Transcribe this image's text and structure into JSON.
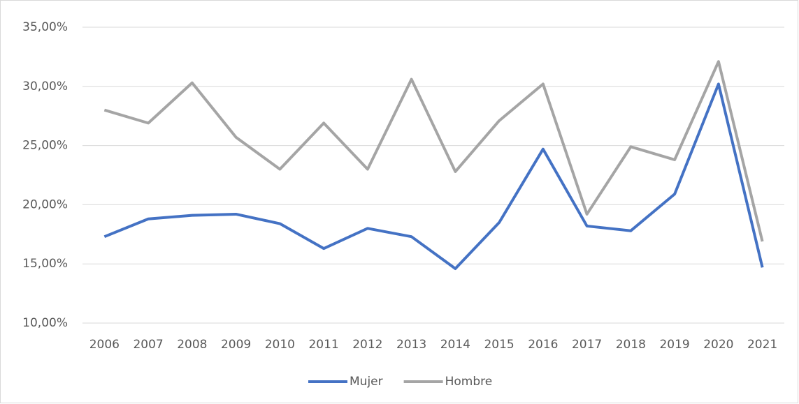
{
  "chart_data": {
    "type": "line",
    "categories": [
      "2006",
      "2007",
      "2008",
      "2009",
      "2010",
      "2011",
      "2012",
      "2013",
      "2014",
      "2015",
      "2016",
      "2017",
      "2018",
      "2019",
      "2020",
      "2021"
    ],
    "series": [
      {
        "name": "Mujer",
        "color": "#4472c4",
        "values": [
          17.3,
          18.8,
          19.1,
          19.2,
          18.4,
          16.3,
          18.0,
          17.3,
          14.6,
          18.5,
          24.7,
          18.2,
          17.8,
          20.9,
          30.2,
          14.7
        ]
      },
      {
        "name": "Hombre",
        "color": "#a5a5a5",
        "values": [
          28.0,
          26.9,
          30.3,
          25.7,
          23.0,
          26.9,
          23.0,
          30.6,
          22.8,
          27.1,
          30.2,
          19.2,
          24.9,
          23.8,
          32.1,
          16.9
        ]
      }
    ],
    "ylim": [
      10,
      35
    ],
    "yticks": [
      {
        "value": 10,
        "label": "10,00%"
      },
      {
        "value": 15,
        "label": "15,00%"
      },
      {
        "value": 20,
        "label": "20,00%"
      },
      {
        "value": 25,
        "label": "25,00%"
      },
      {
        "value": 30,
        "label": "30,00%"
      },
      {
        "value": 35,
        "label": "35,00%"
      }
    ],
    "grid": true,
    "legend": "bottom"
  }
}
